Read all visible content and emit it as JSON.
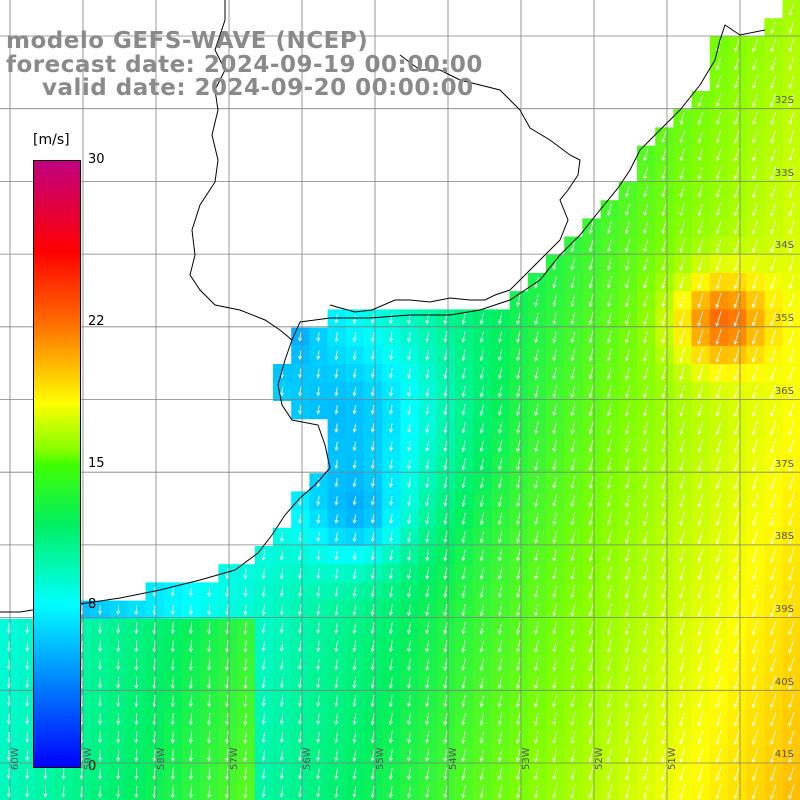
{
  "titles": {
    "line1": "modelo GEFS-WAVE (NCEP)",
    "line2": "forecast date: 2024-09-19 00:00:00",
    "line3": "valid date: 2024-09-20 00:00:00"
  },
  "colorbar": {
    "unit": "[m/s]",
    "min": 0,
    "max": 30,
    "ticks": [
      30,
      22,
      15,
      8,
      0
    ],
    "colors": [
      "#0000ff",
      "#0080ff",
      "#00ffff",
      "#00ff40",
      "#80ff00",
      "#ffff00",
      "#ffa000",
      "#ff2000",
      "#ff0000",
      "#c00080"
    ]
  },
  "lat_labels": [
    "32S",
    "33S",
    "34S",
    "35S",
    "36S",
    "37S",
    "38S",
    "39S",
    "40S",
    "41S"
  ],
  "lon_labels": [
    "60W",
    "59W",
    "58W",
    "57W",
    "56W",
    "55W",
    "54W",
    "53W",
    "52W",
    "51W"
  ],
  "colors": {
    "land": "#ffffff",
    "grid": "#808080",
    "coast": "#000000",
    "arrow": "#ffffff"
  }
}
